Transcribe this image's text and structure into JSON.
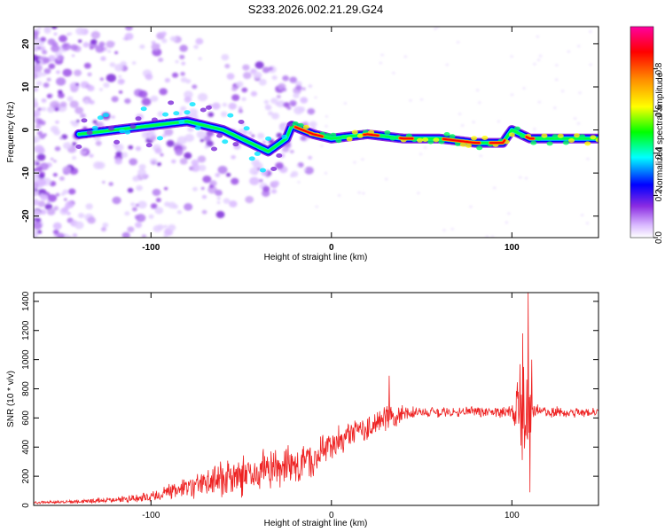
{
  "title": "S233.2026.002.21.29.G24",
  "chart_data": [
    {
      "type": "heatmap",
      "name": "spectrogram",
      "xlabel": "Height of straight line (km)",
      "ylabel": "Frequency (Hz)",
      "xlim": [
        -165,
        148
      ],
      "ylim": [
        -25,
        24
      ],
      "xticks": [
        -100,
        0,
        100
      ],
      "yticks": [
        20,
        10,
        0,
        -10,
        -20
      ],
      "colorbar": {
        "label": "Normalized spectral amplitude",
        "range": [
          0.0,
          1.0
        ],
        "ticks": [
          0.0,
          0.2,
          0.4,
          0.6,
          0.8
        ],
        "colormap": [
          "#d9b8ff",
          "#8a2be2",
          "#0000ff",
          "#00ffff",
          "#00ff00",
          "#ffff00",
          "#ff8c00",
          "#ff0000",
          "#ff00a0"
        ]
      },
      "ridge": {
        "description": "dominant frequency vs height",
        "points": [
          [
            -140,
            -1
          ],
          [
            -120,
            0
          ],
          [
            -100,
            1
          ],
          [
            -80,
            2
          ],
          [
            -60,
            0
          ],
          [
            -45,
            -3
          ],
          [
            -35,
            -5
          ],
          [
            -25,
            -2
          ],
          [
            -22,
            1
          ],
          [
            -10,
            -1
          ],
          [
            0,
            -2
          ],
          [
            20,
            -1
          ],
          [
            40,
            -2
          ],
          [
            60,
            -2
          ],
          [
            80,
            -3
          ],
          [
            95,
            -3
          ],
          [
            100,
            0
          ],
          [
            105,
            -1
          ],
          [
            110,
            -2
          ],
          [
            130,
            -2
          ],
          [
            148,
            -2
          ]
        ],
        "peak_amplitude_segments": [
          [
            -20,
            -5
          ],
          [
            18,
            26
          ],
          [
            38,
            45
          ],
          [
            62,
            82
          ],
          [
            88,
            96
          ],
          [
            108,
            112
          ]
        ]
      },
      "scatter_noise_region_km": [
        -165,
        -20
      ]
    },
    {
      "type": "line",
      "name": "snr",
      "xlabel": "Height of straight line (km)",
      "ylabel": "SNR (10 * v/v)",
      "xlim": [
        -165,
        148
      ],
      "ylim": [
        0,
        1460
      ],
      "xticks": [
        -100,
        0,
        100
      ],
      "yticks": [
        0,
        200,
        400,
        600,
        800,
        1000,
        1200,
        1400
      ],
      "color": "#ee2222",
      "envelope": {
        "x": [
          -165,
          -140,
          -120,
          -100,
          -80,
          -60,
          -40,
          -25,
          -10,
          0,
          10,
          20,
          30,
          40,
          50,
          60,
          70,
          80,
          90,
          100,
          104,
          108,
          112,
          120,
          148
        ],
        "mean": [
          20,
          25,
          40,
          60,
          120,
          180,
          230,
          260,
          320,
          420,
          480,
          530,
          590,
          630,
          640,
          640,
          640,
          645,
          645,
          640,
          600,
          620,
          650,
          640,
          640
        ],
        "spread": [
          10,
          15,
          25,
          40,
          80,
          150,
          170,
          160,
          150,
          120,
          110,
          110,
          120,
          60,
          40,
          40,
          40,
          40,
          40,
          60,
          400,
          500,
          60,
          40,
          40
        ]
      },
      "spikes": [
        {
          "x": 32,
          "y": 890
        },
        {
          "x": 106,
          "y": 1180
        },
        {
          "x": 109,
          "y": 1460
        },
        {
          "x": 110,
          "y": 90
        },
        {
          "x": 111,
          "y": 1000
        }
      ]
    }
  ]
}
